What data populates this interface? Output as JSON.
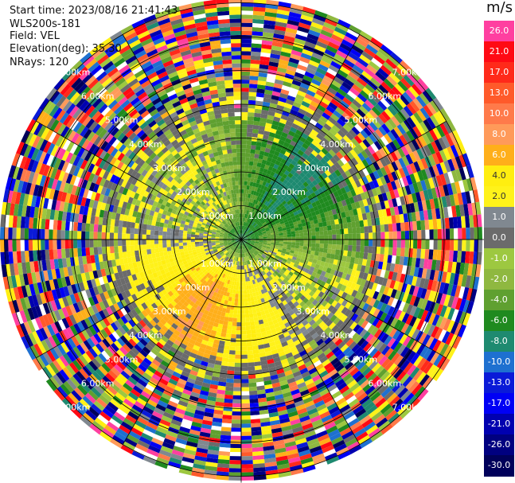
{
  "header": {
    "start_time": "Start time: 2023/08/16 21:41:43",
    "instrument": "WLS200s-181",
    "field": "Field: VEL",
    "elevation": "Elevation(deg): 35.30",
    "nrays": "NRays: 120"
  },
  "colorbar": {
    "unit": "m/s",
    "bins": [
      {
        "label": "26.0",
        "color": "#ff3fa0",
        "text_color": "#ffffff"
      },
      {
        "label": "21.0",
        "color": "#ff0a14",
        "text_color": "#ffffff"
      },
      {
        "label": "17.0",
        "color": "#ff2a1a",
        "text_color": "#ffffff"
      },
      {
        "label": "13.0",
        "color": "#ff5a2a",
        "text_color": "#ffffff"
      },
      {
        "label": "10.0",
        "color": "#ff7a4a",
        "text_color": "#ffffff"
      },
      {
        "label": "8.0",
        "color": "#ff9a5a",
        "text_color": "#ffffff"
      },
      {
        "label": "6.0",
        "color": "#ffaf1a",
        "text_color": "#ffffff"
      },
      {
        "label": "4.0",
        "color": "#ffee10",
        "text_color": "#333333"
      },
      {
        "label": "2.0",
        "color": "#fff21a",
        "text_color": "#333333"
      },
      {
        "label": "1.0",
        "color": "#808890",
        "text_color": "#ffffff"
      },
      {
        "label": "0.0",
        "color": "#6b6b6b",
        "text_color": "#ffffff"
      },
      {
        "label": "-1.0",
        "color": "#9dc840",
        "text_color": "#ffffff"
      },
      {
        "label": "-2.0",
        "color": "#8fb840",
        "text_color": "#ffffff"
      },
      {
        "label": "-4.0",
        "color": "#5fa030",
        "text_color": "#ffffff"
      },
      {
        "label": "-6.0",
        "color": "#1f8a1f",
        "text_color": "#ffffff"
      },
      {
        "label": "-8.0",
        "color": "#1e8a70",
        "text_color": "#ffffff"
      },
      {
        "label": "-10.0",
        "color": "#1e70d0",
        "text_color": "#ffffff"
      },
      {
        "label": "-13.0",
        "color": "#0a1ad8",
        "text_color": "#ffffff"
      },
      {
        "label": "-17.0",
        "color": "#0000f5",
        "text_color": "#ffffff"
      },
      {
        "label": "-21.0",
        "color": "#0000b0",
        "text_color": "#ffffff"
      },
      {
        "label": "-26.0",
        "color": "#000080",
        "text_color": "#ffffff"
      },
      {
        "label": "-30.0",
        "color": "#00005a",
        "text_color": "#ffffff"
      }
    ]
  },
  "chart_data": {
    "type": "heatmap",
    "plot_kind": "polar-ppi",
    "field": "VEL",
    "units": "m/s",
    "rays": 120,
    "range_rings_km": [
      1.0,
      2.0,
      3.0,
      4.0,
      5.0,
      6.0,
      7.0
    ],
    "range_ring_labels": [
      "1.00km",
      "2.00km",
      "3.00km",
      "4.00km",
      "5.00km",
      "6.00km",
      "7.00km"
    ],
    "spokes_deg": [
      0,
      30,
      60,
      90,
      120,
      150,
      180,
      210,
      240,
      270,
      300,
      330
    ],
    "velocity_pattern": {
      "near_range_velocity_ms": -6.0,
      "positive_lobe_azimuth_deg": 210,
      "positive_lobe_velocity_ms": 8.0,
      "negative_lobe_azimuth_deg": 45,
      "negative_lobe_velocity_ms": -7.0,
      "clean_data_max_range_km": 3.6,
      "noise_range_km": [
        4.0,
        7.0
      ]
    }
  }
}
